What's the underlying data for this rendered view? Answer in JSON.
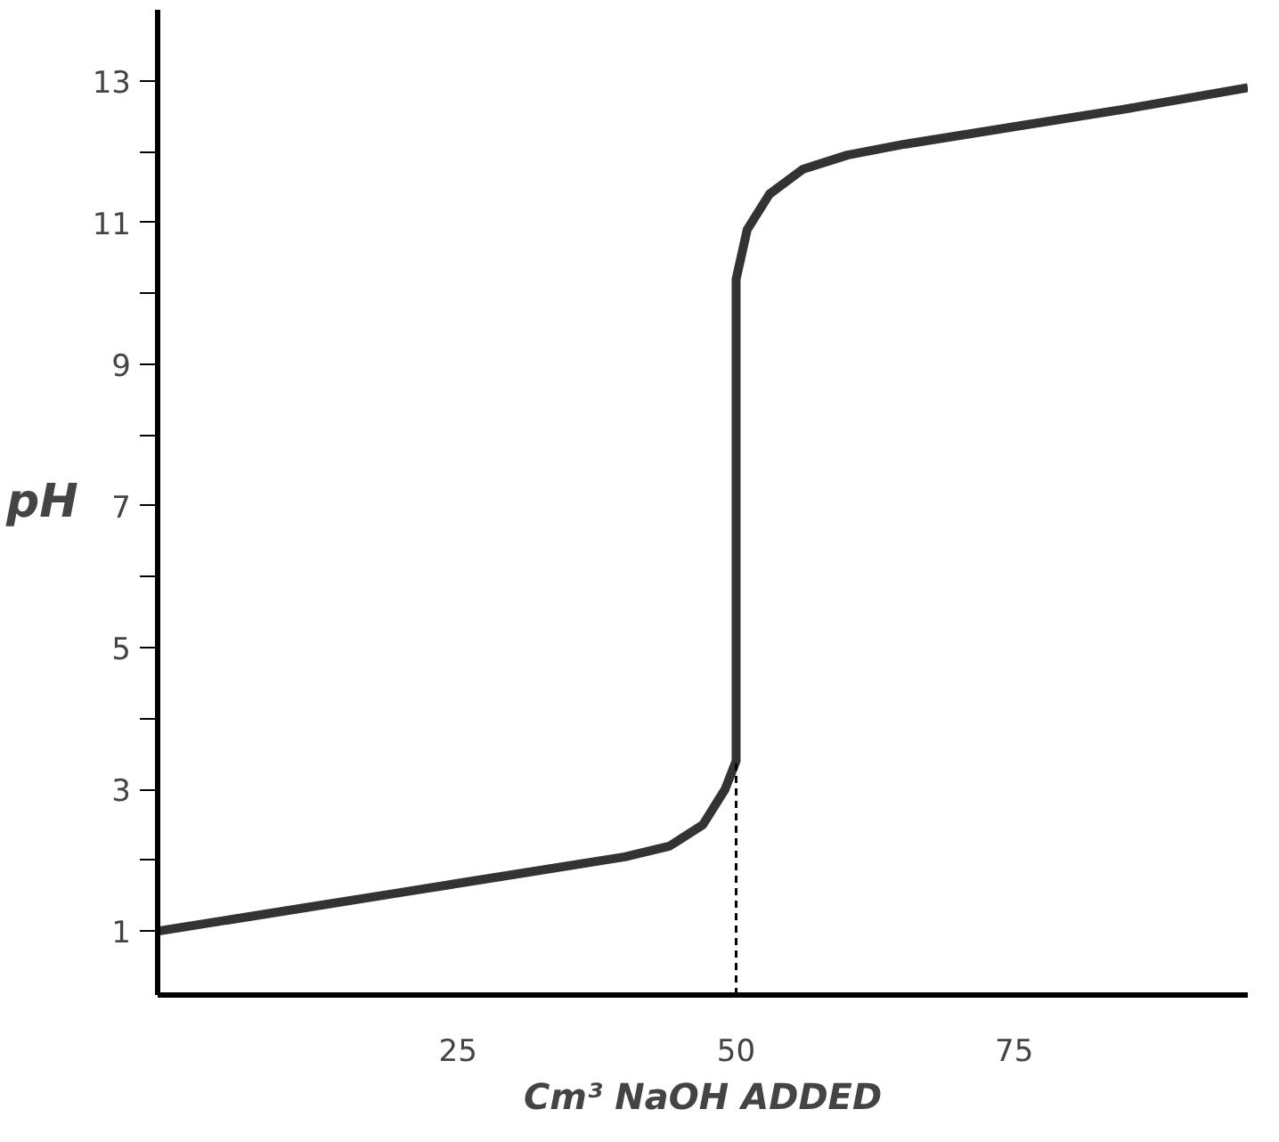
{
  "chart_data": {
    "type": "line",
    "xlabel": "Cm³ NaOH ADDED",
    "ylabel": "pH",
    "xlim": [
      -2,
      96
    ],
    "ylim": [
      0.1,
      14
    ],
    "xticks": [
      25,
      50,
      75
    ],
    "yticks": [
      1,
      {
        "value": 2,
        "label": null
      },
      3,
      {
        "value": 4,
        "label": null
      },
      5,
      {
        "value": 6,
        "label": null
      },
      7,
      {
        "value": 8,
        "label": null
      },
      9,
      {
        "value": 10,
        "label": null
      },
      11,
      {
        "value": 12,
        "label": null
      },
      13
    ],
    "series": [
      {
        "color": "#333333",
        "x": [
          -2,
          10,
          20,
          30,
          40,
          44,
          47,
          49,
          50,
          50,
          51,
          53,
          56,
          60,
          65,
          75,
          85,
          96
        ],
        "values": [
          1.0,
          1.3,
          1.55,
          1.8,
          2.05,
          2.2,
          2.5,
          3.0,
          3.4,
          10.2,
          10.9,
          11.4,
          11.75,
          11.95,
          12.1,
          12.35,
          12.6,
          12.9
        ]
      }
    ],
    "ref_lines": [
      {
        "axis": "x",
        "value": 50,
        "label": null,
        "color": "#000000",
        "line_style": "dashed"
      }
    ],
    "grid": false
  }
}
